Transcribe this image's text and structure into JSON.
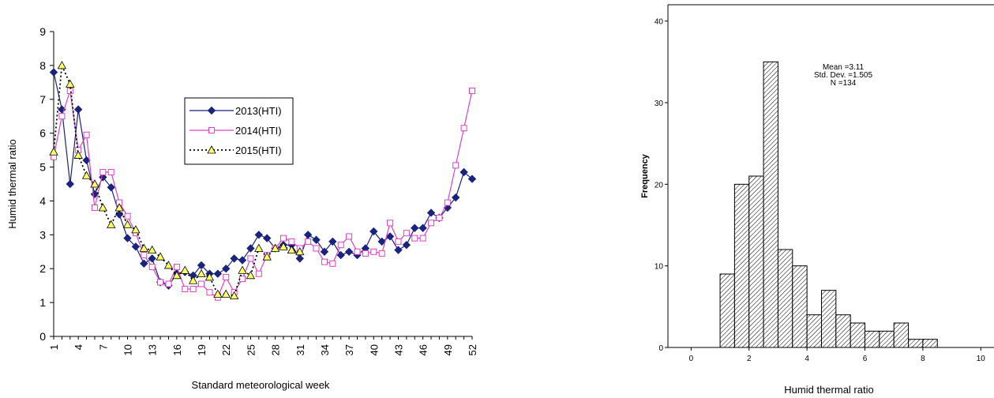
{
  "chart_data": [
    {
      "type": "line",
      "title": "",
      "xlabel": "Standard meteorological week",
      "ylabel": "Humid thermal ratio",
      "ylim": [
        0,
        9
      ],
      "yticks": [
        0,
        1,
        2,
        3,
        4,
        5,
        6,
        7,
        8,
        9
      ],
      "xlim": [
        1,
        52
      ],
      "xticks": [
        1,
        4,
        7,
        10,
        13,
        16,
        19,
        22,
        25,
        28,
        31,
        34,
        37,
        40,
        43,
        46,
        49,
        52
      ],
      "legend_position": "center",
      "colors": {
        "s2013": "#1a237e",
        "s2014": "#e040c8",
        "s2015": "#000000",
        "s2015_fill": "#ffff66",
        "s2014_fill": "#ffffff",
        "axis": "#000000"
      },
      "series": [
        {
          "name": "2013(HTI)",
          "x": [
            1,
            2,
            3,
            4,
            5,
            6,
            7,
            8,
            9,
            10,
            11,
            12,
            13,
            14,
            15,
            16,
            17,
            18,
            19,
            20,
            21,
            22,
            23,
            24,
            25,
            26,
            27,
            28,
            29,
            30,
            31,
            32,
            33,
            34,
            35,
            36,
            37,
            38,
            39,
            40,
            41,
            42,
            43,
            44,
            45,
            46,
            47,
            48,
            49,
            50,
            51,
            52
          ],
          "values": [
            7.8,
            6.7,
            4.5,
            6.7,
            5.2,
            4.2,
            4.7,
            4.4,
            3.6,
            2.9,
            2.65,
            2.15,
            2.3,
            1.6,
            1.5,
            1.85,
            1.9,
            1.8,
            2.1,
            1.85,
            1.85,
            2.0,
            2.3,
            2.25,
            2.6,
            3.0,
            2.9,
            2.6,
            2.7,
            2.7,
            2.3,
            3.0,
            2.85,
            2.5,
            2.8,
            2.4,
            2.5,
            2.4,
            2.6,
            3.1,
            2.8,
            2.95,
            2.55,
            2.7,
            3.2,
            3.2,
            3.65,
            3.5,
            3.8,
            4.1,
            4.85,
            4.65
          ]
        },
        {
          "name": "2014(HTI)",
          "x": [
            1,
            2,
            3,
            4,
            5,
            6,
            7,
            8,
            9,
            10,
            11,
            12,
            13,
            14,
            15,
            16,
            17,
            18,
            19,
            20,
            21,
            22,
            23,
            24,
            25,
            26,
            27,
            28,
            29,
            30,
            31,
            32,
            33,
            34,
            35,
            36,
            37,
            38,
            39,
            40,
            41,
            42,
            43,
            44,
            45,
            46,
            47,
            48,
            49,
            50,
            51,
            52
          ],
          "values": [
            5.3,
            6.5,
            7.25,
            5.5,
            5.95,
            3.8,
            4.85,
            4.85,
            3.95,
            3.55,
            3.05,
            2.4,
            2.05,
            1.6,
            1.55,
            2.05,
            1.4,
            1.4,
            1.55,
            1.3,
            1.15,
            1.75,
            1.3,
            1.7,
            2.3,
            1.85,
            2.4,
            2.6,
            2.9,
            2.8,
            2.6,
            2.8,
            2.6,
            2.2,
            2.15,
            2.7,
            2.95,
            2.5,
            2.45,
            2.5,
            2.45,
            3.35,
            2.8,
            3.05,
            2.9,
            2.9,
            3.35,
            3.5,
            3.95,
            5.05,
            6.15,
            7.25
          ]
        },
        {
          "name": "2015(HTI)",
          "x": [
            1,
            2,
            3,
            4,
            5,
            6,
            7,
            8,
            9,
            10,
            11,
            12,
            13,
            14,
            15,
            16,
            17,
            18,
            19,
            20,
            21,
            22,
            23,
            24,
            25,
            26,
            27,
            28,
            29,
            30,
            31
          ],
          "values": [
            5.45,
            8.0,
            7.45,
            5.35,
            4.75,
            4.5,
            3.8,
            3.3,
            3.8,
            3.3,
            3.15,
            2.6,
            2.55,
            2.35,
            2.1,
            1.8,
            1.95,
            1.65,
            1.85,
            1.75,
            1.25,
            1.25,
            1.2,
            1.95,
            1.8,
            2.6,
            2.35,
            2.6,
            2.65,
            2.55,
            2.5
          ]
        }
      ]
    },
    {
      "type": "bar",
      "subtype": "histogram",
      "title": "",
      "xlabel": "Humid thermal ratio",
      "ylabel": "Frequency",
      "xlim": [
        -0.8,
        11
      ],
      "ylim": [
        0,
        42
      ],
      "xticks": [
        0,
        2,
        4,
        6,
        8,
        10
      ],
      "yticks": [
        0,
        10,
        20,
        30,
        40
      ],
      "bin_width": 0.5,
      "bins": [
        {
          "x0": 1.0,
          "count": 9
        },
        {
          "x0": 1.5,
          "count": 20
        },
        {
          "x0": 2.0,
          "count": 21
        },
        {
          "x0": 2.5,
          "count": 35
        },
        {
          "x0": 3.0,
          "count": 12
        },
        {
          "x0": 3.5,
          "count": 10
        },
        {
          "x0": 4.0,
          "count": 4
        },
        {
          "x0": 4.5,
          "count": 7
        },
        {
          "x0": 5.0,
          "count": 4
        },
        {
          "x0": 5.5,
          "count": 3
        },
        {
          "x0": 6.0,
          "count": 2
        },
        {
          "x0": 6.5,
          "count": 2
        },
        {
          "x0": 7.0,
          "count": 3
        },
        {
          "x0": 7.5,
          "count": 1
        },
        {
          "x0": 8.0,
          "count": 1
        }
      ],
      "stats": [
        "Mean =3.11",
        "Std. Dev. =1.505",
        "N =134"
      ],
      "colors": {
        "bar_fill": "#ffffff",
        "hatch": "#000000",
        "axis": "#000000"
      }
    }
  ]
}
